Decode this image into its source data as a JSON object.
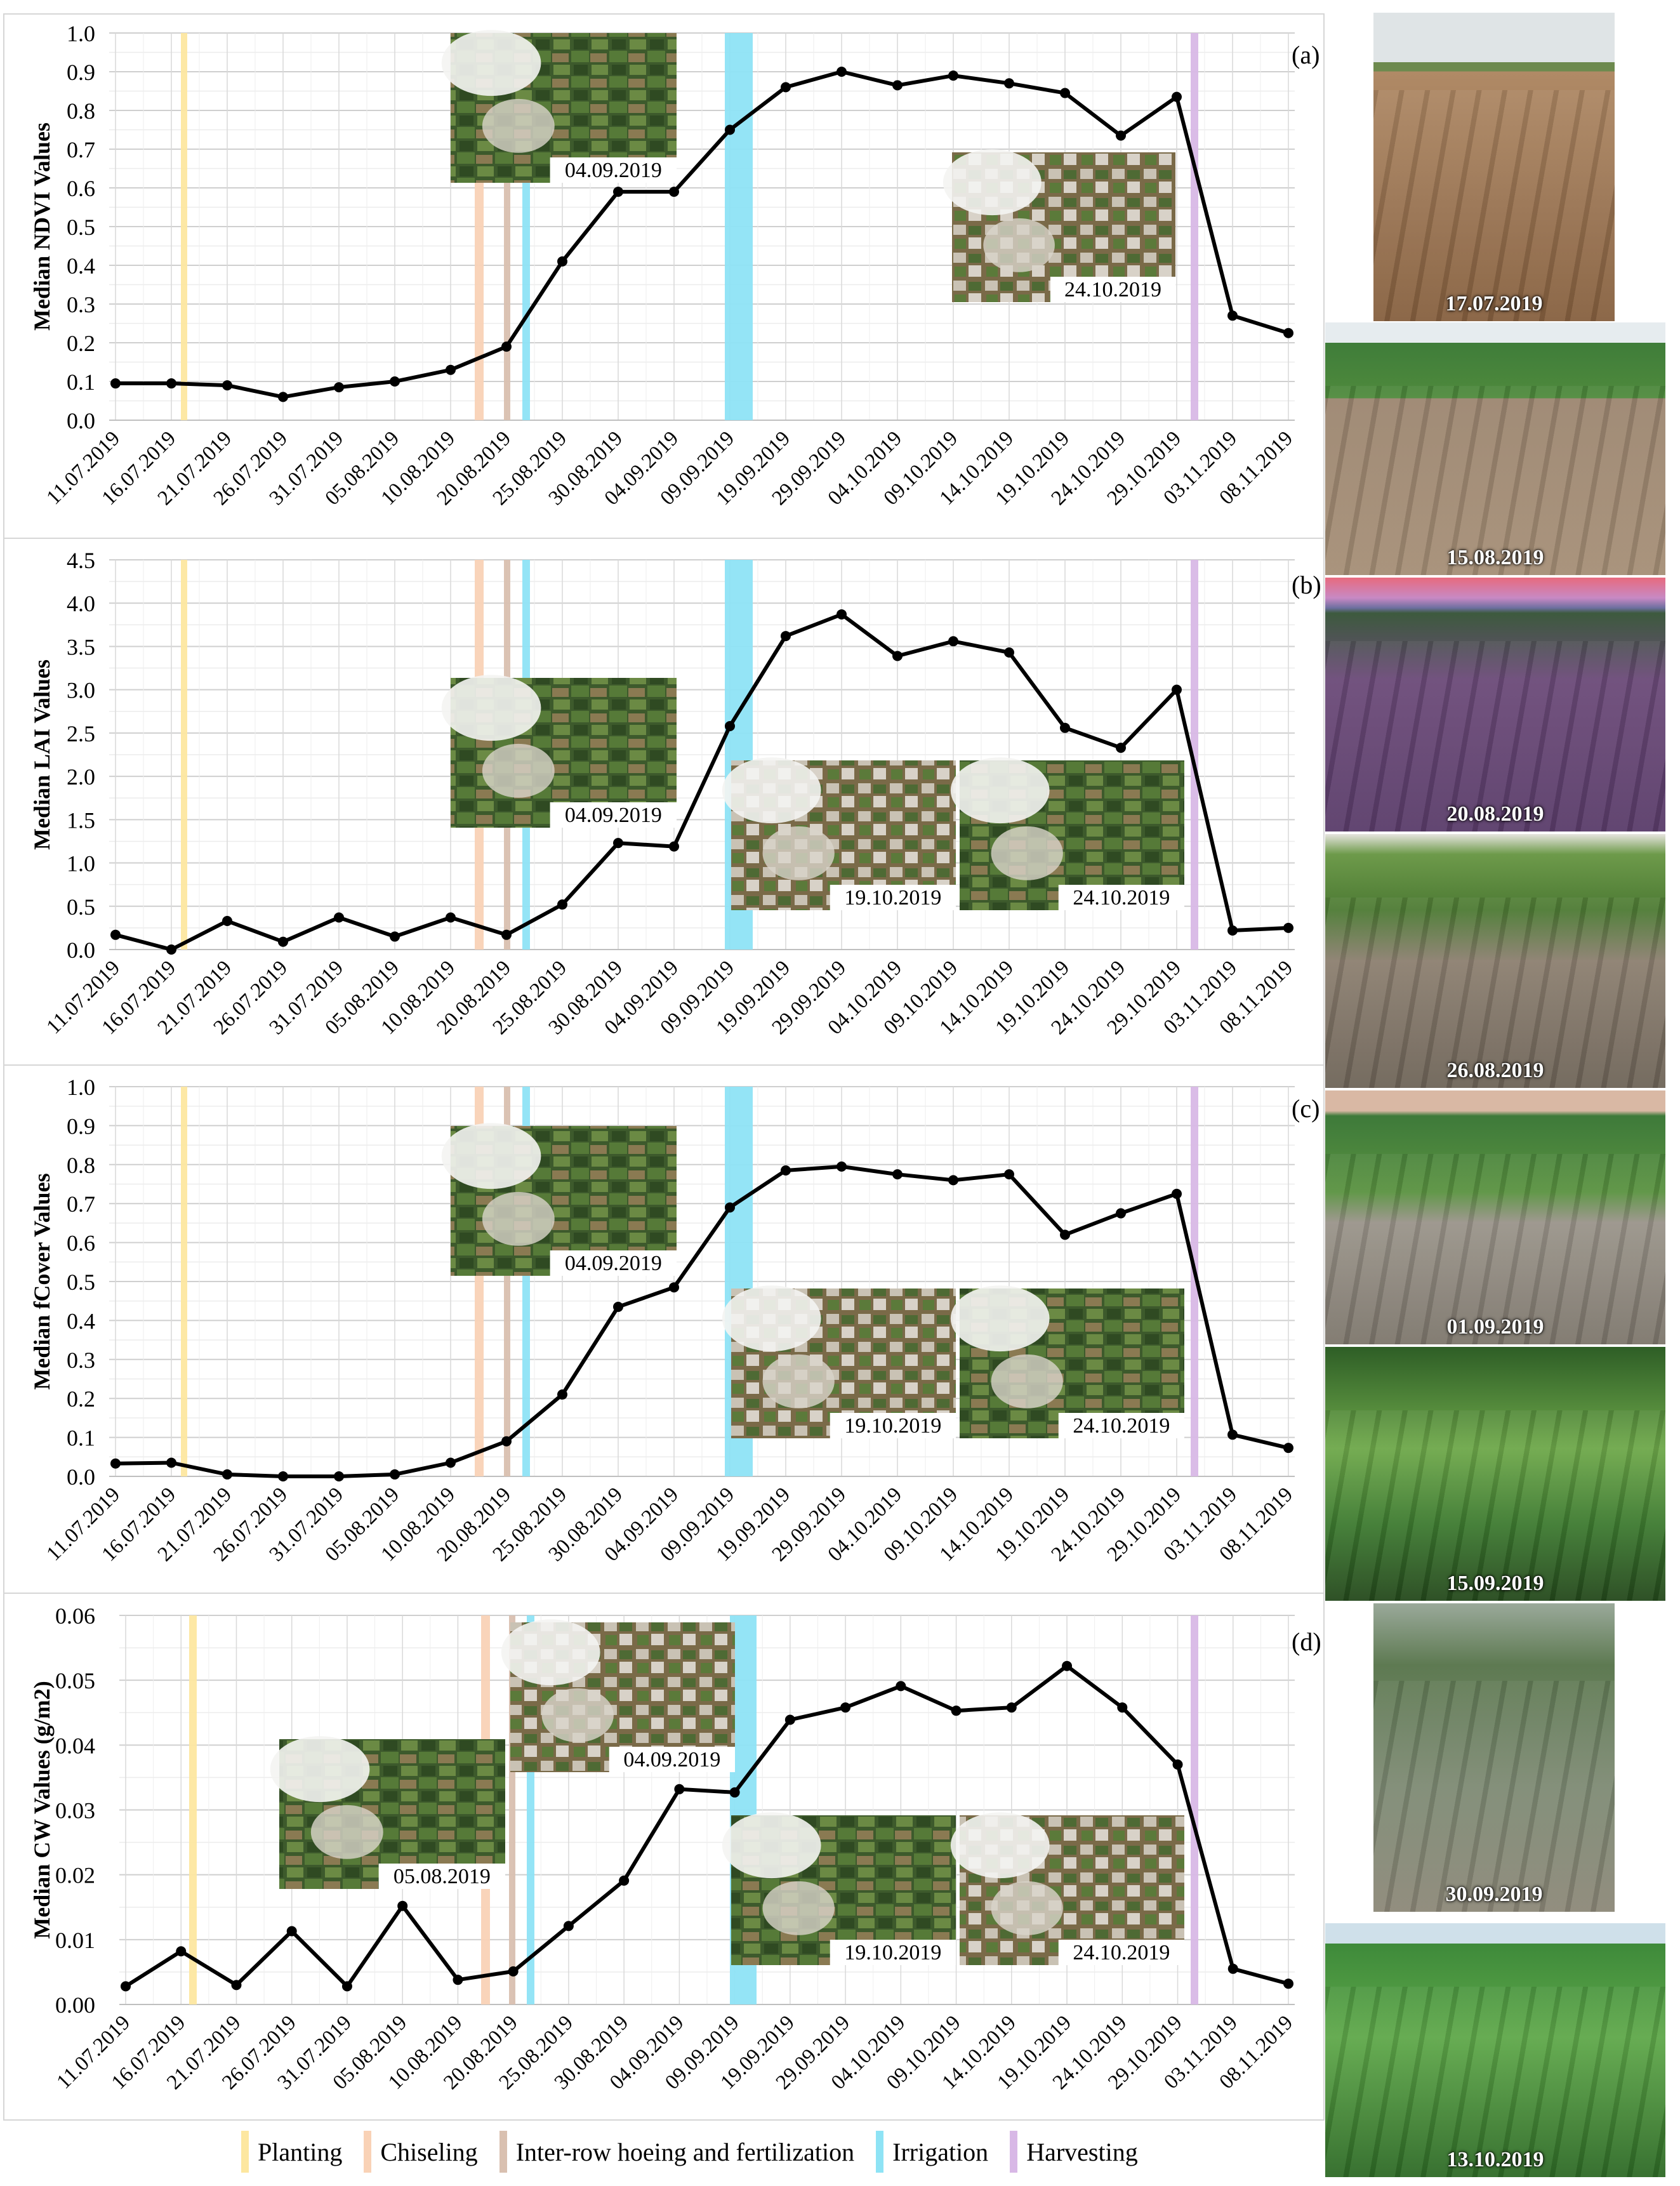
{
  "x_labels": [
    "11.07.2019",
    "16.07.2019",
    "21.07.2019",
    "26.07.2019",
    "31.07.2019",
    "05.08.2019",
    "10.08.2019",
    "20.08.2019",
    "25.08.2019",
    "30.08.2019",
    "04.09.2019",
    "09.09.2019",
    "19.09.2019",
    "29.09.2019",
    "04.10.2019",
    "09.10.2019",
    "14.10.2019",
    "19.10.2019",
    "24.10.2019",
    "29.10.2019",
    "03.11.2019",
    "08.11.2019"
  ],
  "chart_data": [
    {
      "type": "line",
      "panel": "(a)",
      "ylabel": "Median NDVI Values",
      "ylim": [
        0,
        1.0
      ],
      "yticks": [
        "0.0",
        "0.1",
        "0.2",
        "0.3",
        "0.4",
        "0.5",
        "0.6",
        "0.7",
        "0.8",
        "0.9",
        "1.0"
      ],
      "values": [
        0.095,
        0.095,
        0.09,
        0.06,
        0.085,
        0.1,
        0.13,
        0.19,
        0.41,
        0.59,
        0.59,
        0.75,
        0.86,
        0.9,
        0.865,
        0.89,
        0.87,
        0.845,
        0.735,
        0.835,
        0.27,
        0.225
      ],
      "satellite_images": [
        "04.09.2019",
        "24.10.2019"
      ]
    },
    {
      "type": "line",
      "panel": "(b)",
      "ylabel": "Median LAI Values",
      "ylim": [
        0,
        4.5
      ],
      "yticks": [
        "0.0",
        "0.5",
        "1.0",
        "1.5",
        "2.0",
        "2.5",
        "3.0",
        "3.5",
        "4.0",
        "4.5"
      ],
      "values": [
        0.17,
        0.0,
        0.33,
        0.09,
        0.37,
        0.15,
        0.37,
        0.17,
        0.52,
        1.23,
        1.19,
        2.58,
        3.62,
        3.87,
        3.39,
        3.56,
        3.43,
        2.56,
        2.33,
        3.0,
        0.22,
        0.25
      ],
      "satellite_images": [
        "04.09.2019",
        "19.10.2019",
        "24.10.2019"
      ]
    },
    {
      "type": "line",
      "panel": "(c)",
      "ylabel": "Median fCover Values",
      "ylim": [
        0,
        1.0
      ],
      "yticks": [
        "0.0",
        "0.1",
        "0.2",
        "0.3",
        "0.4",
        "0.5",
        "0.6",
        "0.7",
        "0.8",
        "0.9",
        "1.0"
      ],
      "values": [
        0.033,
        0.035,
        0.005,
        0.0,
        0.0,
        0.005,
        0.035,
        0.09,
        0.21,
        0.435,
        0.485,
        0.69,
        0.785,
        0.795,
        0.775,
        0.76,
        0.775,
        0.62,
        0.675,
        0.725,
        0.107,
        0.073
      ],
      "satellite_images": [
        "04.09.2019",
        "19.10.2019",
        "24.10.2019"
      ]
    },
    {
      "type": "line",
      "panel": "(d)",
      "ylabel": "Median CW Values (g/m2)",
      "ylim": [
        0,
        0.06
      ],
      "yticks": [
        "0.00",
        "0.01",
        "0.02",
        "0.03",
        "0.04",
        "0.05",
        "0.06"
      ],
      "values": [
        0.0028,
        0.0082,
        0.003,
        0.0113,
        0.0028,
        0.0152,
        0.0038,
        0.0051,
        0.0121,
        0.0191,
        0.0332,
        0.0327,
        0.0439,
        0.0458,
        0.0491,
        0.0453,
        0.0458,
        0.0522,
        0.0458,
        0.037,
        0.0055,
        0.0032
      ],
      "satellite_images": [
        "05.08.2019",
        "04.09.2019",
        "19.10.2019",
        "24.10.2019"
      ]
    }
  ],
  "events": {
    "colors": {
      "planting": "#fde7a0",
      "chiseling": "#f9d2b6",
      "hoeing": "#d9c0b0",
      "irrigation": "#8ee3f5",
      "harvesting": "#d8b8e6"
    }
  },
  "legend": [
    {
      "label": "Planting",
      "color": "#fde7a0"
    },
    {
      "label": "Chiseling",
      "color": "#f9d2b6"
    },
    {
      "label": "Inter-row hoeing and fertilization",
      "color": "#d9c0b0"
    },
    {
      "label": "Irrigation",
      "color": "#8ee3f5"
    },
    {
      "label": "Harvesting",
      "color": "#d8b8e6"
    }
  ],
  "photos": [
    {
      "date": "17.07.2019",
      "scene": "soil"
    },
    {
      "date": "15.08.2019",
      "scene": "young"
    },
    {
      "date": "20.08.2019",
      "scene": "dusk"
    },
    {
      "date": "26.08.2019",
      "scene": "cracked"
    },
    {
      "date": "01.09.2019",
      "scene": "cracked2"
    },
    {
      "date": "15.09.2019",
      "scene": "dense"
    },
    {
      "date": "30.09.2019",
      "scene": "close"
    },
    {
      "date": "13.10.2019",
      "scene": "dense2"
    }
  ]
}
